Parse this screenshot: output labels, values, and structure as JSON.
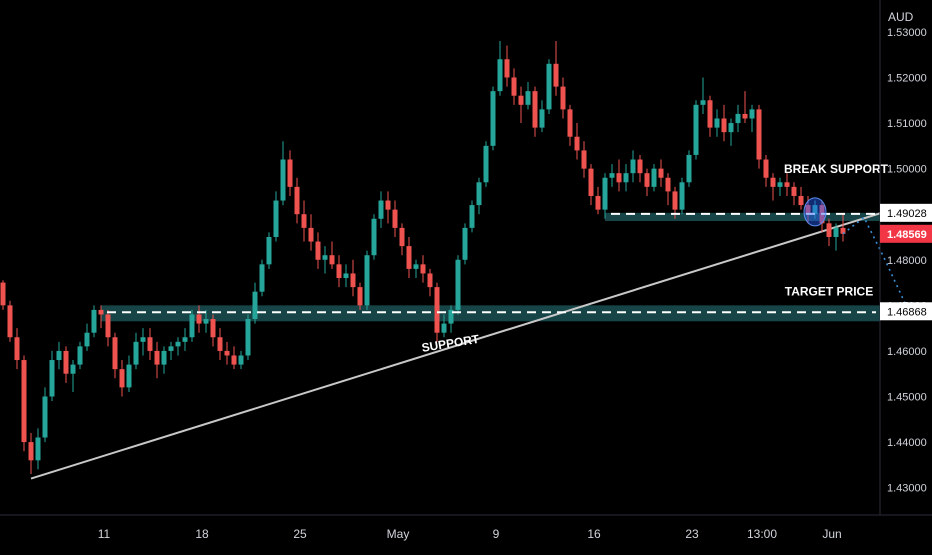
{
  "chart_data": {
    "type": "candlestick",
    "currency_label": "AUD",
    "y_ticks": [
      "1.53000",
      "1.52000",
      "1.51000",
      "1.50000",
      "1.49000",
      "1.48000",
      "1.47000",
      "1.46000",
      "1.45000",
      "1.44000",
      "1.43000"
    ],
    "ylim": [
      1.424,
      1.537
    ],
    "x_ticks": [
      {
        "label": "11",
        "idx": 14
      },
      {
        "label": "18",
        "idx": 28
      },
      {
        "label": "25",
        "idx": 42
      },
      {
        "label": "May",
        "idx": 56
      },
      {
        "label": "9",
        "idx": 70
      },
      {
        "label": "16",
        "idx": 84
      },
      {
        "label": "23",
        "idx": 98
      },
      {
        "label": "13:00",
        "idx": 108
      },
      {
        "label": "Jun",
        "idx": 118
      }
    ],
    "price_levels": [
      {
        "name": "break-support-level",
        "label": "1.49028",
        "value": 1.4903,
        "zone": [
          1.4885,
          1.4903
        ],
        "zone_from": 86,
        "color": "#ffffff"
      },
      {
        "name": "target-level",
        "label": "1.46868",
        "value": 1.4687,
        "zone": [
          1.4665,
          1.47
        ],
        "zone_from": 14,
        "color": "#ffffff"
      },
      {
        "name": "current-price",
        "label": "1.48569",
        "value": 1.4857,
        "color": "#f23645"
      }
    ],
    "trendline": {
      "from": [
        4,
        1.432
      ],
      "to": [
        128,
        1.4915
      ]
    },
    "annotations": [
      {
        "name": "support-label",
        "text": "SUPPORT",
        "idx": 64,
        "value": 1.4608,
        "rotate": -9
      },
      {
        "name": "break-support-label",
        "text": "BREAK SUPPORT",
        "idx": 119,
        "value": 1.499
      },
      {
        "name": "target-price-label",
        "text": "TARGET PRICE",
        "idx": 118,
        "value": 1.4722
      }
    ],
    "candles": [
      [
        1.475,
        1.4755,
        1.469,
        1.47
      ],
      [
        1.47,
        1.471,
        1.462,
        1.463
      ],
      [
        1.463,
        1.465,
        1.456,
        1.458
      ],
      [
        1.458,
        1.459,
        1.438,
        1.44
      ],
      [
        1.44,
        1.442,
        1.433,
        1.436
      ],
      [
        1.436,
        1.443,
        1.434,
        1.441
      ],
      [
        1.441,
        1.452,
        1.44,
        1.45
      ],
      [
        1.45,
        1.46,
        1.449,
        1.458
      ],
      [
        1.458,
        1.462,
        1.456,
        1.46
      ],
      [
        1.46,
        1.461,
        1.453,
        1.455
      ],
      [
        1.455,
        1.458,
        1.451,
        1.457
      ],
      [
        1.457,
        1.462,
        1.456,
        1.461
      ],
      [
        1.461,
        1.466,
        1.46,
        1.464
      ],
      [
        1.464,
        1.47,
        1.463,
        1.469
      ],
      [
        1.469,
        1.47,
        1.465,
        1.468
      ],
      [
        1.468,
        1.469,
        1.461,
        1.463
      ],
      [
        1.463,
        1.464,
        1.454,
        1.456
      ],
      [
        1.456,
        1.458,
        1.45,
        1.452
      ],
      [
        1.452,
        1.459,
        1.451,
        1.457
      ],
      [
        1.457,
        1.464,
        1.456,
        1.462
      ],
      [
        1.462,
        1.465,
        1.459,
        1.463
      ],
      [
        1.463,
        1.465,
        1.458,
        1.46
      ],
      [
        1.46,
        1.462,
        1.454,
        1.457
      ],
      [
        1.457,
        1.461,
        1.455,
        1.46
      ],
      [
        1.46,
        1.462,
        1.458,
        1.461
      ],
      [
        1.461,
        1.463,
        1.459,
        1.462
      ],
      [
        1.462,
        1.465,
        1.46,
        1.463
      ],
      [
        1.463,
        1.469,
        1.462,
        1.468
      ],
      [
        1.468,
        1.47,
        1.464,
        1.466
      ],
      [
        1.466,
        1.469,
        1.464,
        1.467
      ],
      [
        1.467,
        1.468,
        1.461,
        1.463
      ],
      [
        1.463,
        1.465,
        1.458,
        1.46
      ],
      [
        1.46,
        1.462,
        1.457,
        1.459
      ],
      [
        1.459,
        1.461,
        1.456,
        1.457
      ],
      [
        1.457,
        1.46,
        1.456,
        1.459
      ],
      [
        1.459,
        1.468,
        1.458,
        1.467
      ],
      [
        1.467,
        1.475,
        1.466,
        1.473
      ],
      [
        1.473,
        1.48,
        1.472,
        1.479
      ],
      [
        1.479,
        1.486,
        1.478,
        1.485
      ],
      [
        1.485,
        1.495,
        1.484,
        1.493
      ],
      [
        1.493,
        1.506,
        1.492,
        1.502
      ],
      [
        1.502,
        1.504,
        1.494,
        1.496
      ],
      [
        1.496,
        1.498,
        1.488,
        1.49
      ],
      [
        1.49,
        1.493,
        1.484,
        1.487
      ],
      [
        1.487,
        1.49,
        1.482,
        1.484
      ],
      [
        1.484,
        1.486,
        1.478,
        1.48
      ],
      [
        1.48,
        1.483,
        1.477,
        1.481
      ],
      [
        1.481,
        1.484,
        1.478,
        1.479
      ],
      [
        1.479,
        1.481,
        1.474,
        1.476
      ],
      [
        1.476,
        1.479,
        1.474,
        1.477
      ],
      [
        1.477,
        1.48,
        1.472,
        1.474
      ],
      [
        1.474,
        1.475,
        1.469,
        1.47
      ],
      [
        1.47,
        1.482,
        1.469,
        1.481
      ],
      [
        1.481,
        1.49,
        1.48,
        1.489
      ],
      [
        1.489,
        1.495,
        1.487,
        1.493
      ],
      [
        1.493,
        1.495,
        1.488,
        1.491
      ],
      [
        1.491,
        1.493,
        1.485,
        1.487
      ],
      [
        1.487,
        1.488,
        1.481,
        1.483
      ],
      [
        1.483,
        1.485,
        1.476,
        1.478
      ],
      [
        1.478,
        1.48,
        1.476,
        1.479
      ],
      [
        1.479,
        1.481,
        1.475,
        1.477
      ],
      [
        1.477,
        1.478,
        1.472,
        1.474
      ],
      [
        1.474,
        1.475,
        1.462,
        1.464
      ],
      [
        1.464,
        1.468,
        1.463,
        1.466
      ],
      [
        1.466,
        1.47,
        1.464,
        1.469
      ],
      [
        1.469,
        1.481,
        1.468,
        1.48
      ],
      [
        1.48,
        1.488,
        1.479,
        1.487
      ],
      [
        1.487,
        1.493,
        1.486,
        1.492
      ],
      [
        1.492,
        1.498,
        1.49,
        1.497
      ],
      [
        1.497,
        1.506,
        1.496,
        1.505
      ],
      [
        1.505,
        1.518,
        1.504,
        1.517
      ],
      [
        1.517,
        1.528,
        1.516,
        1.524
      ],
      [
        1.524,
        1.527,
        1.518,
        1.52
      ],
      [
        1.52,
        1.522,
        1.514,
        1.516
      ],
      [
        1.516,
        1.518,
        1.51,
        1.514
      ],
      [
        1.514,
        1.519,
        1.513,
        1.517
      ],
      [
        1.517,
        1.518,
        1.507,
        1.509
      ],
      [
        1.509,
        1.515,
        1.508,
        1.513
      ],
      [
        1.513,
        1.524,
        1.512,
        1.523
      ],
      [
        1.523,
        1.528,
        1.516,
        1.518
      ],
      [
        1.518,
        1.52,
        1.511,
        1.513
      ],
      [
        1.513,
        1.514,
        1.505,
        1.507
      ],
      [
        1.507,
        1.51,
        1.502,
        1.504
      ],
      [
        1.504,
        1.506,
        1.498,
        1.5
      ],
      [
        1.5,
        1.501,
        1.492,
        1.494
      ],
      [
        1.494,
        1.496,
        1.49,
        1.491
      ],
      [
        1.491,
        1.499,
        1.489,
        1.498
      ],
      [
        1.498,
        1.501,
        1.496,
        1.499
      ],
      [
        1.499,
        1.502,
        1.495,
        1.497
      ],
      [
        1.497,
        1.501,
        1.495,
        1.499
      ],
      [
        1.499,
        1.504,
        1.497,
        1.502
      ],
      [
        1.502,
        1.503,
        1.497,
        1.499
      ],
      [
        1.499,
        1.5,
        1.494,
        1.496
      ],
      [
        1.496,
        1.501,
        1.495,
        1.5
      ],
      [
        1.5,
        1.502,
        1.496,
        1.498
      ],
      [
        1.498,
        1.499,
        1.492,
        1.495
      ],
      [
        1.495,
        1.496,
        1.489,
        1.491
      ],
      [
        1.491,
        1.498,
        1.49,
        1.497
      ],
      [
        1.497,
        1.504,
        1.496,
        1.503
      ],
      [
        1.503,
        1.515,
        1.502,
        1.514
      ],
      [
        1.514,
        1.52,
        1.512,
        1.515
      ],
      [
        1.515,
        1.516,
        1.507,
        1.509
      ],
      [
        1.509,
        1.513,
        1.507,
        1.511
      ],
      [
        1.511,
        1.514,
        1.506,
        1.508
      ],
      [
        1.508,
        1.511,
        1.505,
        1.51
      ],
      [
        1.51,
        1.514,
        1.508,
        1.512
      ],
      [
        1.512,
        1.517,
        1.51,
        1.511
      ],
      [
        1.511,
        1.514,
        1.508,
        1.513
      ],
      [
        1.513,
        1.514,
        1.5,
        1.502
      ],
      [
        1.502,
        1.503,
        1.496,
        1.498
      ],
      [
        1.498,
        1.499,
        1.493,
        1.496
      ],
      [
        1.496,
        1.498,
        1.494,
        1.497
      ],
      [
        1.497,
        1.499,
        1.494,
        1.496
      ],
      [
        1.496,
        1.497,
        1.492,
        1.494
      ],
      [
        1.494,
        1.496,
        1.491,
        1.492
      ],
      [
        1.492,
        1.494,
        1.488,
        1.49
      ],
      [
        1.49,
        1.493,
        1.489,
        1.492
      ],
      [
        1.492,
        1.493,
        1.486,
        1.488
      ],
      [
        1.488,
        1.489,
        1.483,
        1.485
      ],
      [
        1.485,
        1.488,
        1.482,
        1.487
      ],
      [
        1.487,
        1.49,
        1.484,
        1.4857
      ]
    ],
    "projection": [
      [
        120,
        1.4857
      ],
      [
        123,
        1.4893
      ],
      [
        126,
        1.48
      ],
      [
        129,
        1.47
      ]
    ],
    "colors": {
      "up": "#26a69a",
      "down": "#ef5350",
      "zone": "#1a4d4f",
      "trendline": "#c8c8c8",
      "projection": "#3a8fd6",
      "axis_text": "#d1d4dc",
      "price_box_bg": "#ffffff",
      "current_bg": "#f23645"
    }
  }
}
